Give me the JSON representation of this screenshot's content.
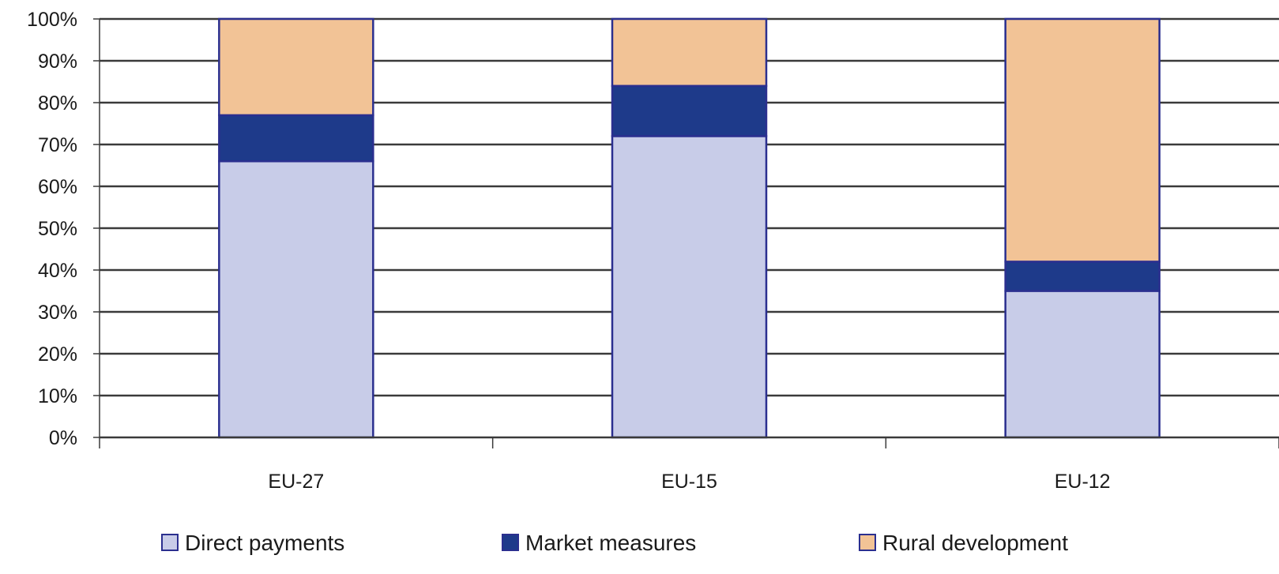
{
  "chart_data": {
    "type": "bar",
    "stacked": true,
    "normalized_percent": true,
    "categories": [
      "EU-27",
      "EU-15",
      "EU-12"
    ],
    "series": [
      {
        "name": "Direct payments",
        "values": [
          66,
          72,
          35
        ],
        "color": "#c8cce8"
      },
      {
        "name": "Market measures",
        "values": [
          11,
          12,
          7
        ],
        "color": "#1e3a8a"
      },
      {
        "name": "Rural development",
        "values": [
          23,
          16,
          58
        ],
        "color": "#f2c396"
      }
    ],
    "ylim": [
      0,
      100
    ],
    "y_ticks": [
      "0%",
      "10%",
      "20%",
      "30%",
      "40%",
      "50%",
      "60%",
      "70%",
      "80%",
      "90%",
      "100%"
    ],
    "grid": true,
    "legend_position": "bottom"
  }
}
